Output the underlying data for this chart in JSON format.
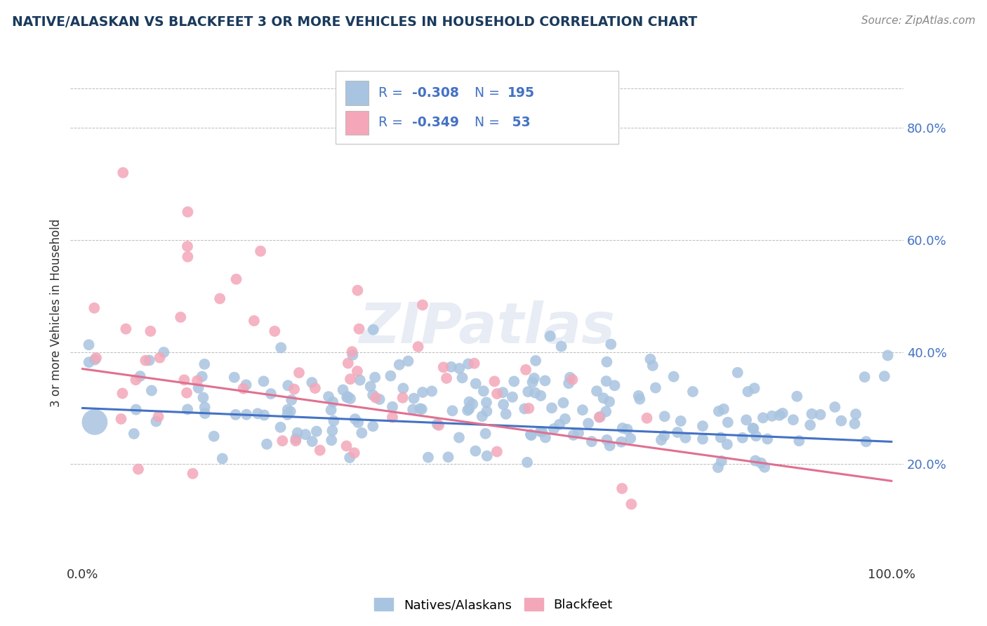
{
  "title": "NATIVE/ALASKAN VS BLACKFEET 3 OR MORE VEHICLES IN HOUSEHOLD CORRELATION CHART",
  "source": "Source: ZipAtlas.com",
  "ylabel": "3 or more Vehicles in Household",
  "y_ticks_labels": [
    "20.0%",
    "40.0%",
    "60.0%",
    "80.0%"
  ],
  "y_tick_vals": [
    0.2,
    0.4,
    0.6,
    0.8
  ],
  "legend_blue_label": "Natives/Alaskans",
  "legend_pink_label": "Blackfeet",
  "legend_blue_R": "-0.308",
  "legend_blue_N": "195",
  "legend_pink_R": "-0.349",
  "legend_pink_N": "53",
  "watermark": "ZIPatlas",
  "blue_color": "#a8c4e0",
  "pink_color": "#f4a7b9",
  "line_blue": "#4472c4",
  "line_pink": "#e07090",
  "title_color": "#1a3a5c",
  "source_color": "#888888",
  "RN_color": "#4472c4",
  "blue_seed": 42,
  "pink_seed": 123
}
